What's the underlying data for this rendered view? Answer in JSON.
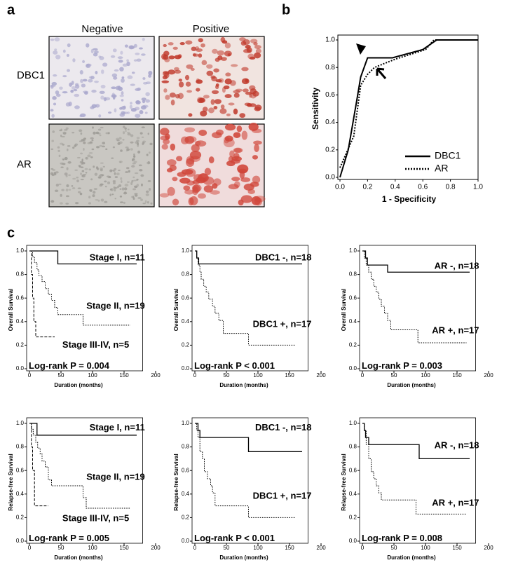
{
  "panel_labels": [
    "a",
    "b",
    "c"
  ],
  "panel_a": {
    "columns": [
      "Negative",
      "Positive"
    ],
    "rows": [
      "DBC1",
      "AR"
    ]
  },
  "chart_data": [
    {
      "type": "line",
      "xlabel": "1 - Specificity",
      "ylabel": "Sensitivity",
      "legend": "lower right",
      "xlim": [
        0,
        1
      ],
      "ylim": [
        0,
        1
      ],
      "xticks": [
        {
          "value": 0,
          "label": "0.0"
        },
        {
          "value": 0.2,
          "label": "0.2"
        },
        {
          "value": 0.4,
          "label": "0.4"
        },
        {
          "value": 0.6,
          "label": "0.6"
        },
        {
          "value": 0.8,
          "label": "0.8"
        },
        {
          "value": 1,
          "label": "1.0"
        }
      ],
      "yticks": [
        {
          "value": 0,
          "label": "0.0"
        },
        {
          "value": 0.2,
          "label": "0.2"
        },
        {
          "value": 0.4,
          "label": "0.4"
        },
        {
          "value": 0.6,
          "label": "0.6"
        },
        {
          "value": 0.8,
          "label": "0.8"
        },
        {
          "value": 1,
          "label": "1.0"
        }
      ],
      "series": [
        {
          "name": "DBC1",
          "color": "#000000",
          "linestyle": "solid",
          "x": [
            0,
            0.06,
            0.12,
            0.15,
            0.2,
            0.38,
            0.6,
            0.7,
            1
          ],
          "values": [
            0,
            0.2,
            0.55,
            0.73,
            0.87,
            0.87,
            0.93,
            1,
            1
          ]
        },
        {
          "name": "AR",
          "color": "#000000",
          "linestyle": "dotted",
          "x": [
            0,
            0.1,
            0.15,
            0.2,
            0.25,
            0.4,
            0.62,
            0.68,
            1
          ],
          "values": [
            0.07,
            0.3,
            0.67,
            0.75,
            0.8,
            0.86,
            0.93,
            1,
            1
          ]
        }
      ]
    },
    {
      "type": "km",
      "xlabel": "Duration (months)",
      "ylabel": "Overall Survival",
      "note": "Log-rank P = 0.004",
      "xlim": [
        0,
        200
      ],
      "ylim": [
        0,
        1
      ],
      "xticks": [
        0,
        50,
        100,
        150,
        200
      ],
      "yticks": [
        {
          "value": 0,
          "label": "0.0"
        },
        {
          "value": 0.2,
          "label": "0.2"
        },
        {
          "value": 0.4,
          "label": "0.4"
        },
        {
          "value": 0.6,
          "label": "0.6"
        },
        {
          "value": 0.8,
          "label": "0.8"
        },
        {
          "value": 1,
          "label": "1.0"
        }
      ],
      "series": [
        {
          "name": "Stage I, n=11",
          "color": "#000000",
          "linestyle": "solid",
          "x": [
            0,
            45,
            45,
            170
          ],
          "values": [
            1,
            1,
            0.89,
            0.89
          ]
        },
        {
          "name": "Stage II, n=19",
          "color": "#000000",
          "linestyle": "dotted",
          "x": [
            0,
            5,
            5,
            8,
            8,
            12,
            12,
            15,
            15,
            20,
            20,
            25,
            25,
            30,
            30,
            35,
            35,
            40,
            40,
            45,
            45,
            85,
            85,
            160
          ],
          "values": [
            1,
            1,
            0.95,
            0.95,
            0.9,
            0.9,
            0.84,
            0.84,
            0.79,
            0.79,
            0.74,
            0.74,
            0.68,
            0.68,
            0.63,
            0.63,
            0.58,
            0.58,
            0.52,
            0.52,
            0.46,
            0.46,
            0.37,
            0.37
          ]
        },
        {
          "name": "Stage III-IV, n=5",
          "color": "#000000",
          "linestyle": "dashed",
          "x": [
            0,
            3,
            3,
            5,
            5,
            7,
            7,
            10,
            10,
            40
          ],
          "values": [
            1,
            1,
            0.8,
            0.8,
            0.6,
            0.6,
            0.4,
            0.4,
            0.27,
            0.27
          ]
        }
      ]
    },
    {
      "type": "km",
      "xlabel": "Duration (months)",
      "ylabel": "Overall Survival",
      "note": "Log-rank P < 0.001",
      "xlim": [
        0,
        200
      ],
      "ylim": [
        0,
        1
      ],
      "xticks": [
        0,
        50,
        100,
        150,
        200
      ],
      "yticks": [
        {
          "value": 0,
          "label": "0.0"
        },
        {
          "value": 0.2,
          "label": "0.2"
        },
        {
          "value": 0.4,
          "label": "0.4"
        },
        {
          "value": 0.6,
          "label": "0.6"
        },
        {
          "value": 0.8,
          "label": "0.8"
        },
        {
          "value": 1,
          "label": "1.0"
        }
      ],
      "series": [
        {
          "name": "DBC1 -, n=18",
          "color": "#000000",
          "linestyle": "solid",
          "x": [
            0,
            3,
            3,
            6,
            6,
            170
          ],
          "values": [
            1,
            1,
            0.94,
            0.94,
            0.89,
            0.89
          ]
        },
        {
          "name": "DBC1 +, n=17",
          "color": "#000000",
          "linestyle": "dotted",
          "x": [
            0,
            3,
            3,
            5,
            5,
            8,
            8,
            10,
            10,
            14,
            14,
            18,
            18,
            22,
            22,
            28,
            28,
            32,
            32,
            38,
            38,
            45,
            45,
            85,
            85,
            160
          ],
          "values": [
            1,
            1,
            0.94,
            0.94,
            0.88,
            0.88,
            0.82,
            0.82,
            0.76,
            0.76,
            0.7,
            0.7,
            0.65,
            0.65,
            0.59,
            0.59,
            0.53,
            0.53,
            0.47,
            0.47,
            0.41,
            0.41,
            0.3,
            0.3,
            0.2,
            0.2
          ]
        }
      ]
    },
    {
      "type": "km",
      "xlabel": "Duration (months)",
      "ylabel": "Overall Survival",
      "note": "Log-rank P = 0.003",
      "xlim": [
        0,
        200
      ],
      "ylim": [
        0,
        1
      ],
      "xticks": [
        0,
        50,
        100,
        150,
        200
      ],
      "yticks": [
        {
          "value": 0,
          "label": "0.0"
        },
        {
          "value": 0.2,
          "label": "0.2"
        },
        {
          "value": 0.4,
          "label": "0.4"
        },
        {
          "value": 0.6,
          "label": "0.6"
        },
        {
          "value": 0.8,
          "label": "0.8"
        },
        {
          "value": 1,
          "label": "1.0"
        }
      ],
      "series": [
        {
          "name": "AR -, n=18",
          "color": "#000000",
          "linestyle": "solid",
          "x": [
            0,
            5,
            5,
            8,
            8,
            40,
            40,
            170
          ],
          "values": [
            1,
            1,
            0.94,
            0.94,
            0.88,
            0.88,
            0.82,
            0.82
          ]
        },
        {
          "name": "AR +, n=17",
          "color": "#000000",
          "linestyle": "dotted",
          "x": [
            0,
            3,
            3,
            6,
            6,
            10,
            10,
            14,
            14,
            18,
            18,
            22,
            22,
            26,
            26,
            30,
            30,
            35,
            35,
            40,
            40,
            45,
            45,
            88,
            88,
            165
          ],
          "values": [
            1,
            1,
            0.94,
            0.94,
            0.88,
            0.88,
            0.82,
            0.82,
            0.76,
            0.76,
            0.7,
            0.7,
            0.65,
            0.65,
            0.59,
            0.59,
            0.53,
            0.53,
            0.47,
            0.47,
            0.41,
            0.41,
            0.33,
            0.33,
            0.22,
            0.22
          ]
        }
      ]
    },
    {
      "type": "km",
      "xlabel": "Duration (months)",
      "ylabel": "Relapse-free Survival",
      "note": "Log-rank P = 0.005",
      "xlim": [
        0,
        200
      ],
      "ylim": [
        0,
        1
      ],
      "xticks": [
        0,
        50,
        100,
        150,
        200
      ],
      "yticks": [
        {
          "value": 0,
          "label": "0.0"
        },
        {
          "value": 0.2,
          "label": "0.2"
        },
        {
          "value": 0.4,
          "label": "0.4"
        },
        {
          "value": 0.6,
          "label": "0.6"
        },
        {
          "value": 0.8,
          "label": "0.8"
        },
        {
          "value": 1,
          "label": "1.0"
        }
      ],
      "series": [
        {
          "name": "Stage I, n=11",
          "color": "#000000",
          "linestyle": "solid",
          "x": [
            0,
            12,
            12,
            170
          ],
          "values": [
            1,
            1,
            0.9,
            0.9
          ]
        },
        {
          "name": "Stage II, n=19",
          "color": "#000000",
          "linestyle": "dotted",
          "x": [
            0,
            3,
            3,
            6,
            6,
            10,
            10,
            13,
            13,
            17,
            17,
            20,
            20,
            25,
            25,
            30,
            30,
            35,
            35,
            85,
            85,
            90,
            90,
            160
          ],
          "values": [
            1,
            1,
            0.95,
            0.95,
            0.9,
            0.9,
            0.84,
            0.84,
            0.79,
            0.79,
            0.74,
            0.74,
            0.68,
            0.68,
            0.63,
            0.63,
            0.52,
            0.52,
            0.47,
            0.47,
            0.37,
            0.37,
            0.28,
            0.28
          ]
        },
        {
          "name": "Stage III-IV, n=5",
          "color": "#000000",
          "linestyle": "dashed",
          "x": [
            0,
            3,
            3,
            5,
            5,
            8,
            8,
            30
          ],
          "values": [
            1,
            1,
            0.8,
            0.8,
            0.6,
            0.6,
            0.3,
            0.3
          ]
        }
      ]
    },
    {
      "type": "km",
      "xlabel": "Duration (months)",
      "ylabel": "Relapse-free Survival",
      "note": "Log-rank P < 0.001",
      "xlim": [
        0,
        200
      ],
      "ylim": [
        0,
        1
      ],
      "xticks": [
        0,
        50,
        100,
        150,
        200
      ],
      "yticks": [
        {
          "value": 0,
          "label": "0.0"
        },
        {
          "value": 0.2,
          "label": "0.2"
        },
        {
          "value": 0.4,
          "label": "0.4"
        },
        {
          "value": 0.6,
          "label": "0.6"
        },
        {
          "value": 0.8,
          "label": "0.8"
        },
        {
          "value": 1,
          "label": "1.0"
        }
      ],
      "series": [
        {
          "name": "DBC1 -, n=18",
          "color": "#000000",
          "linestyle": "solid",
          "x": [
            0,
            5,
            5,
            8,
            8,
            85,
            85,
            170
          ],
          "values": [
            1,
            1,
            0.94,
            0.94,
            0.88,
            0.88,
            0.76,
            0.76
          ]
        },
        {
          "name": "DBC1 +, n=17",
          "color": "#000000",
          "linestyle": "dotted",
          "x": [
            0,
            3,
            3,
            5,
            5,
            8,
            8,
            12,
            12,
            15,
            15,
            20,
            20,
            25,
            25,
            28,
            28,
            32,
            32,
            85,
            85,
            160
          ],
          "values": [
            1,
            1,
            0.94,
            0.94,
            0.88,
            0.88,
            0.76,
            0.76,
            0.7,
            0.7,
            0.59,
            0.59,
            0.53,
            0.53,
            0.47,
            0.47,
            0.41,
            0.41,
            0.3,
            0.3,
            0.2,
            0.2
          ]
        }
      ]
    },
    {
      "type": "km",
      "xlabel": "Duration (months)",
      "ylabel": "Relapse-free Survival",
      "note": "Log-rank P = 0.008",
      "xlim": [
        0,
        200
      ],
      "ylim": [
        0,
        1
      ],
      "xticks": [
        0,
        50,
        100,
        150,
        200
      ],
      "yticks": [
        {
          "value": 0,
          "label": "0.0"
        },
        {
          "value": 0.2,
          "label": "0.2"
        },
        {
          "value": 0.4,
          "label": "0.4"
        },
        {
          "value": 0.6,
          "label": "0.6"
        },
        {
          "value": 0.8,
          "label": "0.8"
        },
        {
          "value": 1,
          "label": "1.0"
        }
      ],
      "series": [
        {
          "name": "AR -, n=18",
          "color": "#000000",
          "linestyle": "solid",
          "x": [
            0,
            3,
            3,
            5,
            5,
            10,
            10,
            90,
            90,
            170
          ],
          "values": [
            1,
            1,
            0.94,
            0.94,
            0.88,
            0.88,
            0.82,
            0.82,
            0.7,
            0.7
          ]
        },
        {
          "name": "AR +, n=17",
          "color": "#000000",
          "linestyle": "dotted",
          "x": [
            0,
            3,
            3,
            6,
            6,
            10,
            10,
            14,
            14,
            18,
            18,
            22,
            22,
            26,
            26,
            30,
            30,
            85,
            85,
            165
          ],
          "values": [
            1,
            1,
            0.94,
            0.94,
            0.82,
            0.82,
            0.7,
            0.7,
            0.59,
            0.59,
            0.53,
            0.53,
            0.47,
            0.47,
            0.41,
            0.41,
            0.35,
            0.35,
            0.23,
            0.23
          ]
        }
      ]
    }
  ]
}
